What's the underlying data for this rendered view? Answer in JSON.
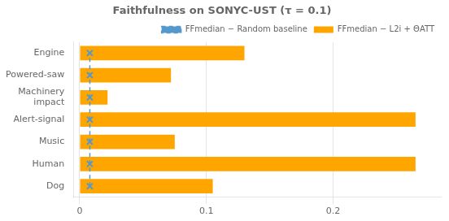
{
  "chart_data": {
    "type": "bar",
    "orientation": "horizontal",
    "title": "Faithfulness on SONYC-UST (τ = 0.1)",
    "categories": [
      "Dog",
      "Human",
      "Music",
      "Alert-signal",
      "Machinery\nimpact",
      "Powered-saw",
      "Engine"
    ],
    "series": [
      {
        "name": "FFmedian − Random baseline",
        "type": "line",
        "color": "#5599CC",
        "marker": "x",
        "line_style": "dashed",
        "values": [
          0.008,
          0.008,
          0.008,
          0.008,
          0.008,
          0.008,
          0.008
        ]
      },
      {
        "name": "FFmedian − L2i + ΘATT",
        "type": "bar",
        "color": "#FFA500",
        "values": [
          0.105,
          0.265,
          0.075,
          0.265,
          0.022,
          0.072,
          0.13
        ]
      }
    ],
    "xlim": [
      -0.005,
      0.285
    ],
    "xticks": [
      0,
      0.1,
      0.2
    ],
    "grid": true,
    "legend": "upper right"
  }
}
